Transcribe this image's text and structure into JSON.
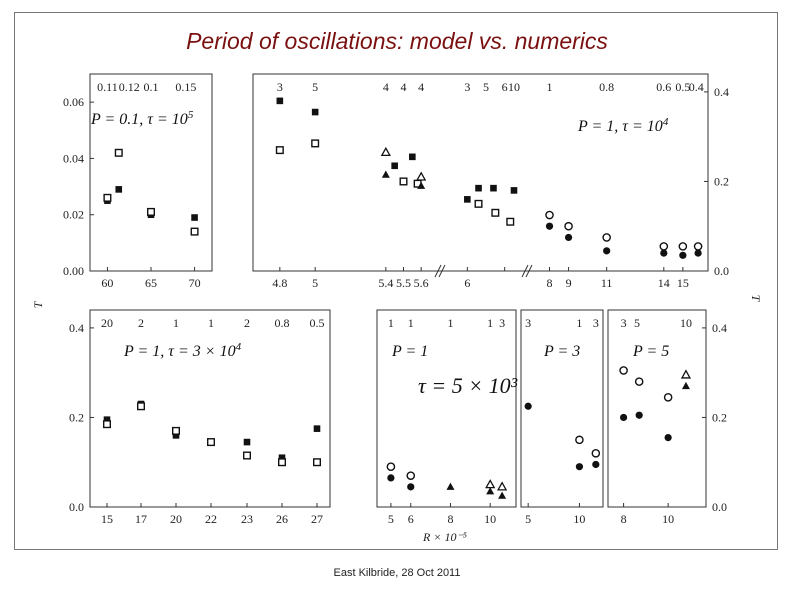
{
  "slide": {
    "title": "Period of oscillations: model vs. numerics",
    "footer": "East Kilbride, 28 Oct 2011"
  },
  "chart_data": [
    {
      "id": "p1",
      "type": "scatter",
      "annotation": "P = 0.1, τ = 10⁵",
      "xlim": [
        58,
        72
      ],
      "ylim": [
        0,
        0.07
      ],
      "xticks": [
        60,
        65,
        70
      ],
      "yticks": [
        0.0,
        0.02,
        0.04,
        0.06
      ],
      "ytick_labels": [
        "0.00",
        "0.02",
        "0.04",
        "0.06"
      ],
      "top_labels": [
        {
          "x": 60,
          "t": "0.11"
        },
        {
          "x": 62.5,
          "t": "0.12"
        },
        {
          "x": 65,
          "t": "0.1"
        },
        {
          "x": 69,
          "t": "0.15"
        }
      ],
      "series": [
        {
          "marker": "filled-square",
          "points": [
            [
              60,
              0.025
            ],
            [
              61.3,
              0.029
            ],
            [
              65,
              0.02
            ],
            [
              70,
              0.019
            ]
          ]
        },
        {
          "marker": "open-square",
          "points": [
            [
              60,
              0.026
            ],
            [
              61.3,
              0.042
            ],
            [
              65,
              0.021
            ],
            [
              70,
              0.014
            ]
          ]
        }
      ]
    },
    {
      "id": "p2",
      "type": "scatter",
      "annotation": "P = 1, τ = 10⁴",
      "ylim": [
        0,
        0.44
      ],
      "yticks": [
        0.0,
        0.2,
        0.4
      ],
      "ytick_labels": [
        "0.0",
        "0.2",
        "0.4"
      ],
      "x_axis_segments": [
        {
          "xlim": [
            4.75,
            5.65
          ],
          "xticks": [
            4.8,
            5,
            5.4,
            5.5,
            5.6
          ],
          "xtick_labels": [
            "4.8",
            "5",
            "5.4",
            "5.5",
            "5.6"
          ]
        },
        {
          "xlim": [
            5.75,
            7.25
          ],
          "xticks": [
            6,
            7
          ],
          "xtick_labels": [
            "6",
            ""
          ]
        },
        {
          "xlim": [
            7.5,
            15.9
          ],
          "xticks": [
            8,
            9,
            11,
            14,
            15
          ],
          "xtick_labels": [
            "8",
            "9",
            "11",
            "14",
            "15"
          ]
        }
      ],
      "top_labels": [
        {
          "x": 4.8,
          "t": "3"
        },
        {
          "x": 5,
          "t": "5"
        },
        {
          "x": 5.4,
          "t": "4"
        },
        {
          "x": 5.5,
          "t": "4"
        },
        {
          "x": 5.6,
          "t": "4"
        },
        {
          "x": 6,
          "t": "3"
        },
        {
          "x": 6.5,
          "t": "5"
        },
        {
          "x": 7,
          "t": "6"
        },
        {
          "x": 7.25,
          "t": "10"
        },
        {
          "x": 8,
          "t": "1"
        },
        {
          "x": 11,
          "t": "0.8"
        },
        {
          "x": 14,
          "t": "0.6"
        },
        {
          "x": 15,
          "t": "0.5"
        },
        {
          "x": 15.7,
          "t": "0.4"
        }
      ],
      "series": [
        {
          "marker": "filled-square",
          "points": [
            [
              4.8,
              0.38
            ],
            [
              5,
              0.355
            ],
            [
              5.45,
              0.235
            ],
            [
              5.55,
              0.255
            ],
            [
              6,
              0.16
            ],
            [
              6.3,
              0.185
            ],
            [
              6.7,
              0.185
            ],
            [
              7.25,
              0.18
            ]
          ]
        },
        {
          "marker": "open-square",
          "points": [
            [
              4.8,
              0.27
            ],
            [
              5,
              0.285
            ],
            [
              5.5,
              0.2
            ],
            [
              5.58,
              0.195
            ],
            [
              6.3,
              0.15
            ],
            [
              6.75,
              0.13
            ],
            [
              7.15,
              0.11
            ]
          ]
        },
        {
          "marker": "open-triangle",
          "points": [
            [
              5.4,
              0.265
            ],
            [
              5.6,
              0.21
            ]
          ]
        },
        {
          "marker": "filled-triangle",
          "points": [
            [
              5.4,
              0.215
            ],
            [
              5.6,
              0.19
            ]
          ]
        },
        {
          "marker": "open-circle",
          "points": [
            [
              8,
              0.125
            ],
            [
              9,
              0.1
            ],
            [
              11,
              0.075
            ],
            [
              14,
              0.055
            ],
            [
              15,
              0.055
            ],
            [
              15.8,
              0.055
            ]
          ]
        },
        {
          "marker": "filled-circle",
          "points": [
            [
              8,
              0.1
            ],
            [
              9,
              0.075
            ],
            [
              11,
              0.045
            ],
            [
              14,
              0.04
            ],
            [
              15,
              0.035
            ],
            [
              15.8,
              0.04
            ]
          ]
        }
      ]
    },
    {
      "id": "p3",
      "type": "scatter",
      "annotation": "P = 1, τ = 3 × 10⁴",
      "ylim": [
        0,
        0.44
      ],
      "yticks": [
        0.0,
        0.2,
        0.4
      ],
      "ytick_labels": [
        "0.0",
        "0.2",
        "0.4"
      ],
      "xticks": [
        15,
        17,
        20,
        22,
        23,
        26,
        27
      ],
      "xtick_labels": [
        "15",
        "17",
        "20",
        "22",
        "23",
        "26",
        "27"
      ],
      "top_labels": [
        {
          "x": 15,
          "t": "20"
        },
        {
          "x": 17,
          "t": "2"
        },
        {
          "x": 20,
          "t": "1"
        },
        {
          "x": 22,
          "t": "1"
        },
        {
          "x": 23,
          "t": "2"
        },
        {
          "x": 26,
          "t": "0.8"
        },
        {
          "x": 27,
          "t": "0.5"
        }
      ],
      "series": [
        {
          "marker": "filled-square",
          "points": [
            [
              15,
              0.195
            ],
            [
              17,
              0.23
            ],
            [
              20,
              0.16
            ],
            [
              22,
              0.145
            ],
            [
              23,
              0.145
            ],
            [
              26,
              0.11
            ],
            [
              27,
              0.175
            ]
          ]
        },
        {
          "marker": "open-square",
          "points": [
            [
              15,
              0.185
            ],
            [
              17,
              0.225
            ],
            [
              20,
              0.17
            ],
            [
              22,
              0.145
            ],
            [
              23,
              0.115
            ],
            [
              26,
              0.1
            ],
            [
              27,
              0.1
            ]
          ]
        }
      ]
    },
    {
      "id": "p4",
      "type": "scatter",
      "annotation": "P = 1",
      "xlim": [
        4.3,
        11.3
      ],
      "ylim": [
        0,
        0.44
      ],
      "xticks": [
        5,
        6,
        8,
        10
      ],
      "xtick_labels": [
        "5",
        "6",
        "8",
        "10"
      ],
      "top_labels": [
        {
          "x": 5,
          "t": "1"
        },
        {
          "x": 6,
          "t": "1"
        },
        {
          "x": 8,
          "t": "1"
        },
        {
          "x": 10,
          "t": "1"
        },
        {
          "x": 10.6,
          "t": "3"
        }
      ],
      "series": [
        {
          "marker": "open-circle",
          "points": [
            [
              5,
              0.09
            ],
            [
              6,
              0.07
            ]
          ]
        },
        {
          "marker": "filled-circle",
          "points": [
            [
              5,
              0.065
            ],
            [
              6,
              0.045
            ]
          ]
        },
        {
          "marker": "filled-triangle",
          "points": [
            [
              8,
              0.045
            ]
          ]
        },
        {
          "marker": "open-triangle",
          "points": [
            [
              10,
              0.05
            ],
            [
              10.6,
              0.045
            ]
          ]
        },
        {
          "marker": "filled-triangle",
          "points": [
            [
              10,
              0.035
            ],
            [
              10.6,
              0.025
            ]
          ]
        }
      ]
    },
    {
      "id": "p5",
      "type": "scatter",
      "annotation": "P = 3",
      "xlim": [
        4.3,
        12.3
      ],
      "ylim": [
        0,
        0.44
      ],
      "xticks": [
        5,
        10
      ],
      "xtick_labels": [
        "5",
        "10"
      ],
      "top_labels": [
        {
          "x": 5,
          "t": "3"
        },
        {
          "x": 10,
          "t": "1"
        },
        {
          "x": 11.6,
          "t": "3"
        }
      ],
      "series": [
        {
          "marker": "filled-circle",
          "points": [
            [
              5,
              0.225
            ],
            [
              10,
              0.09
            ],
            [
              11.6,
              0.095
            ]
          ]
        },
        {
          "marker": "open-circle",
          "points": [
            [
              10,
              0.15
            ],
            [
              11.6,
              0.12
            ]
          ]
        }
      ]
    },
    {
      "id": "p6",
      "type": "scatter",
      "annotation": "P = 5",
      "xlim": [
        7.3,
        11.7
      ],
      "ylim": [
        0,
        0.44
      ],
      "xticks": [
        8,
        10
      ],
      "xtick_labels": [
        "8",
        "10"
      ],
      "yticks_right": [
        0.0,
        0.2,
        0.4
      ],
      "ytick_labels_right": [
        "0.0",
        "0.2",
        "0.4"
      ],
      "top_labels": [
        {
          "x": 8,
          "t": "3"
        },
        {
          "x": 8.6,
          "t": "5"
        },
        {
          "x": 10.8,
          "t": "10"
        }
      ],
      "series": [
        {
          "marker": "open-circle",
          "points": [
            [
              8,
              0.305
            ],
            [
              8.7,
              0.28
            ],
            [
              10,
              0.245
            ]
          ]
        },
        {
          "marker": "filled-circle",
          "points": [
            [
              8,
              0.2
            ],
            [
              8.7,
              0.205
            ],
            [
              10,
              0.155
            ]
          ]
        },
        {
          "marker": "open-triangle",
          "points": [
            [
              10.8,
              0.295
            ]
          ]
        },
        {
          "marker": "filled-triangle",
          "points": [
            [
              10.8,
              0.27
            ]
          ]
        }
      ]
    }
  ],
  "shared": {
    "tau_label": "τ = 5 × 10³",
    "y_axis_label_left": "T",
    "y_axis_label_right": "T",
    "x_axis_label": "R × 10⁻⁵"
  }
}
